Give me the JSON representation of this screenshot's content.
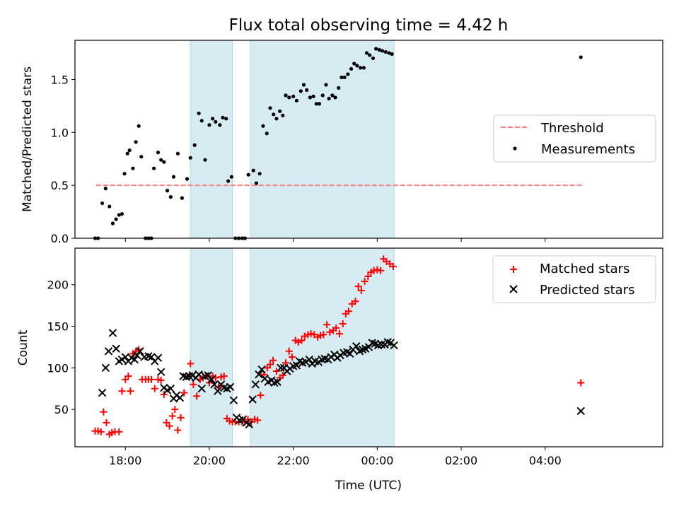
{
  "figure_title": "Flux total observing time = 4.42 h",
  "chart_data": [
    {
      "type": "scatter",
      "panel": "top",
      "ylabel": "Matched/Predicted stars",
      "xlabel": "",
      "x_unit": "hours since 00:00 UTC of first night (values >24 are next day)",
      "xlim": [
        16.8,
        30.8
      ],
      "ylim": [
        0,
        1.87
      ],
      "yticks": [
        0.0,
        0.5,
        1.0,
        1.5
      ],
      "ytick_labels": [
        "0.0",
        "0.5",
        "1.0",
        "1.5"
      ],
      "legend_position": "center-right",
      "shaded_intervals": [
        [
          19.55,
          20.55
        ],
        [
          20.98,
          24.4
        ]
      ],
      "series": [
        {
          "name": "Threshold",
          "kind": "dashed-line",
          "color": "#ff7f7f",
          "x": [
            17.3,
            28.9
          ],
          "y": [
            0.5,
            0.5
          ]
        },
        {
          "name": "Measurements",
          "kind": "dots",
          "color": "#000000",
          "x": [
            17.28,
            17.35,
            17.45,
            17.53,
            17.62,
            17.7,
            17.78,
            17.85,
            17.92,
            17.98,
            18.05,
            18.1,
            18.18,
            18.25,
            18.32,
            18.38,
            18.48,
            18.55,
            18.62,
            18.68,
            18.78,
            18.85,
            18.92,
            19.0,
            19.08,
            19.15,
            19.25,
            19.35,
            19.47,
            19.55,
            19.65,
            19.75,
            19.82,
            19.9,
            20.0,
            20.08,
            20.15,
            20.25,
            20.32,
            20.4,
            20.45,
            20.53,
            20.62,
            20.7,
            20.78,
            20.85,
            20.93,
            21.05,
            21.12,
            21.2,
            21.28,
            21.37,
            21.45,
            21.53,
            21.6,
            21.68,
            21.75,
            21.82,
            21.9,
            22.0,
            22.08,
            22.18,
            22.25,
            22.32,
            22.4,
            22.48,
            22.55,
            22.62,
            22.7,
            22.78,
            22.85,
            22.93,
            23.0,
            23.08,
            23.15,
            23.22,
            23.3,
            23.38,
            23.45,
            23.52,
            23.6,
            23.68,
            23.75,
            23.82,
            23.9,
            23.97,
            24.05,
            24.12,
            24.2,
            24.28,
            24.35,
            28.85
          ],
          "y": [
            0.0,
            0.0,
            0.33,
            0.47,
            0.3,
            0.14,
            0.18,
            0.22,
            0.23,
            0.61,
            0.8,
            0.83,
            0.66,
            0.91,
            1.06,
            0.77,
            0.0,
            0.0,
            0.0,
            0.66,
            0.81,
            0.74,
            0.72,
            0.45,
            0.39,
            0.58,
            0.8,
            0.38,
            0.56,
            0.76,
            0.88,
            1.18,
            1.11,
            0.74,
            1.07,
            1.13,
            1.1,
            1.07,
            1.14,
            1.13,
            0.54,
            0.58,
            0.0,
            0.0,
            0.0,
            0.0,
            0.6,
            0.64,
            0.52,
            0.61,
            1.06,
            0.99,
            1.23,
            1.17,
            1.13,
            1.2,
            1.16,
            1.35,
            1.33,
            1.34,
            1.3,
            1.39,
            1.45,
            1.4,
            1.33,
            1.34,
            1.27,
            1.27,
            1.35,
            1.45,
            1.32,
            1.35,
            1.33,
            1.42,
            1.52,
            1.52,
            1.55,
            1.6,
            1.65,
            1.63,
            1.61,
            1.61,
            1.75,
            1.73,
            1.7,
            1.79,
            1.78,
            1.77,
            1.76,
            1.75,
            1.74,
            1.71
          ]
        }
      ]
    },
    {
      "type": "scatter",
      "panel": "bottom",
      "ylabel": "Count",
      "xlabel": "Time (UTC)",
      "xlim": [
        16.8,
        30.8
      ],
      "ylim": [
        5,
        244
      ],
      "yticks": [
        50,
        100,
        150,
        200
      ],
      "ytick_labels": [
        "50",
        "100",
        "150",
        "200"
      ],
      "xticks": [
        18,
        20,
        22,
        24,
        26,
        28
      ],
      "xtick_labels": [
        "18:00",
        "20:00",
        "22:00",
        "00:00",
        "02:00",
        "04:00"
      ],
      "legend_position": "top-right",
      "shaded_intervals": [
        [
          19.55,
          20.55
        ],
        [
          20.98,
          24.4
        ]
      ],
      "series": [
        {
          "name": "Matched stars",
          "marker": "plus",
          "color": "#ff0000",
          "x": [
            17.28,
            17.35,
            17.42,
            17.48,
            17.55,
            17.62,
            17.68,
            17.75,
            17.85,
            17.92,
            18.0,
            18.07,
            18.12,
            18.18,
            18.25,
            18.32,
            18.4,
            18.48,
            18.55,
            18.62,
            18.7,
            18.78,
            18.85,
            18.92,
            18.98,
            19.05,
            19.12,
            19.18,
            19.25,
            19.32,
            19.4,
            19.47,
            19.55,
            19.62,
            19.7,
            19.78,
            19.85,
            19.92,
            20.0,
            20.08,
            20.15,
            20.22,
            20.28,
            20.35,
            20.42,
            20.48,
            20.55,
            20.62,
            20.7,
            20.78,
            20.85,
            20.92,
            21.0,
            21.08,
            21.15,
            21.22,
            21.3,
            21.38,
            21.45,
            21.52,
            21.6,
            21.68,
            21.75,
            21.82,
            21.9,
            21.97,
            22.05,
            22.12,
            22.2,
            22.27,
            22.35,
            22.42,
            22.5,
            22.58,
            22.65,
            22.72,
            22.8,
            22.87,
            22.95,
            23.02,
            23.1,
            23.18,
            23.25,
            23.32,
            23.4,
            23.48,
            23.55,
            23.62,
            23.7,
            23.78,
            23.85,
            23.92,
            24.0,
            24.08,
            24.15,
            24.22,
            24.3,
            24.38,
            28.85
          ],
          "y": [
            24,
            24,
            23,
            47,
            34,
            20,
            22,
            23,
            23,
            72,
            86,
            90,
            72,
            117,
            120,
            122,
            86,
            86,
            86,
            86,
            75,
            86,
            85,
            68,
            34,
            30,
            42,
            50,
            25,
            40,
            70,
            90,
            105,
            80,
            66,
            86,
            88,
            90,
            82,
            90,
            88,
            77,
            89,
            90,
            39,
            36,
            35,
            35,
            35,
            35,
            35,
            38,
            35,
            38,
            37,
            67,
            92,
            100,
            104,
            109,
            96,
            88,
            91,
            106,
            120,
            113,
            133,
            131,
            133,
            138,
            140,
            141,
            140,
            137,
            139,
            140,
            152,
            143,
            145,
            148,
            141,
            153,
            165,
            168,
            177,
            180,
            198,
            193,
            204,
            210,
            215,
            217,
            218,
            217,
            231,
            228,
            225,
            222,
            82
          ]
        },
        {
          "name": "Predicted stars",
          "marker": "x",
          "color": "#000000",
          "x": [
            17.45,
            17.53,
            17.6,
            17.7,
            17.78,
            17.85,
            17.92,
            18.0,
            18.07,
            18.15,
            18.22,
            18.28,
            18.35,
            18.45,
            18.55,
            18.62,
            18.7,
            18.78,
            18.85,
            18.92,
            19.0,
            19.08,
            19.15,
            19.22,
            19.3,
            19.38,
            19.45,
            19.52,
            19.6,
            19.68,
            19.75,
            19.82,
            19.9,
            19.97,
            20.05,
            20.12,
            20.2,
            20.28,
            20.35,
            20.42,
            20.5,
            20.58,
            20.65,
            20.72,
            20.8,
            20.88,
            20.95,
            21.03,
            21.1,
            21.18,
            21.25,
            21.32,
            21.4,
            21.48,
            21.55,
            21.62,
            21.7,
            21.78,
            21.85,
            21.92,
            22.0,
            22.08,
            22.15,
            22.22,
            22.3,
            22.38,
            22.45,
            22.52,
            22.6,
            22.68,
            22.75,
            22.83,
            22.9,
            22.98,
            23.05,
            23.12,
            23.2,
            23.28,
            23.35,
            23.42,
            23.5,
            23.58,
            23.65,
            23.72,
            23.8,
            23.88,
            23.95,
            24.02,
            24.1,
            24.18,
            24.25,
            24.32,
            24.4,
            28.85
          ],
          "y": [
            70,
            100,
            120,
            142,
            123,
            108,
            110,
            113,
            108,
            112,
            110,
            115,
            120,
            113,
            114,
            113,
            108,
            112,
            95,
            76,
            73,
            75,
            63,
            67,
            64,
            90,
            89,
            90,
            91,
            88,
            92,
            75,
            90,
            91,
            86,
            80,
            72,
            80,
            76,
            75,
            77,
            61,
            40,
            37,
            38,
            34,
            32,
            62,
            80,
            92,
            98,
            87,
            83,
            85,
            82,
            83,
            100,
            100,
            96,
            99,
            102,
            103,
            108,
            106,
            107,
            110,
            105,
            108,
            107,
            110,
            111,
            110,
            113,
            116,
            112,
            115,
            118,
            119,
            117,
            122,
            126,
            120,
            122,
            123,
            125,
            130,
            129,
            127,
            128,
            128,
            131,
            130,
            127,
            48
          ]
        }
      ]
    }
  ]
}
